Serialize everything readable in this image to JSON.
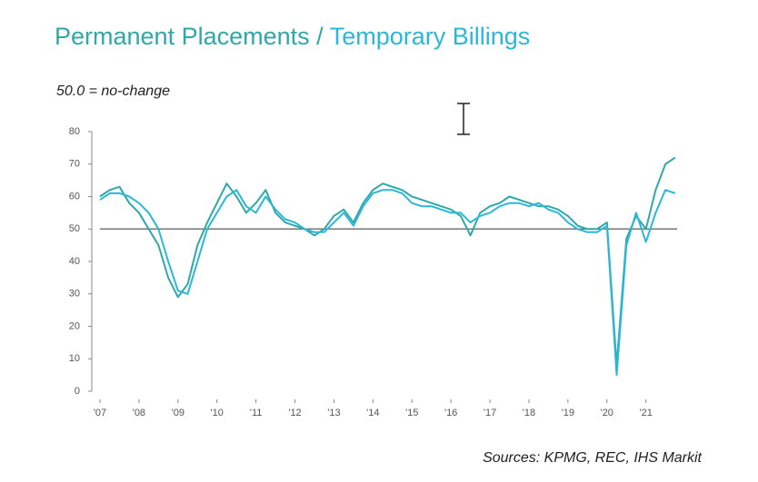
{
  "chart_data": {
    "type": "line",
    "title_separator": "/",
    "subtitle": "50.0 = no-change",
    "source": "Sources: KPMG, REC, IHS Markit",
    "x": [
      2007,
      2007.25,
      2007.5,
      2007.75,
      2008,
      2008.25,
      2008.5,
      2008.75,
      2009,
      2009.25,
      2009.5,
      2009.75,
      2010,
      2010.25,
      2010.5,
      2010.75,
      2011,
      2011.25,
      2011.5,
      2011.75,
      2012,
      2012.25,
      2012.5,
      2012.75,
      2013,
      2013.25,
      2013.5,
      2013.75,
      2014,
      2014.25,
      2014.5,
      2014.75,
      2015,
      2015.25,
      2015.5,
      2015.75,
      2016,
      2016.25,
      2016.5,
      2016.75,
      2017,
      2017.25,
      2017.5,
      2017.75,
      2018,
      2018.25,
      2018.5,
      2018.75,
      2019,
      2019.25,
      2019.5,
      2019.75,
      2020,
      2020.25,
      2020.5,
      2020.75,
      2021,
      2021.25,
      2021.5,
      2021.75
    ],
    "series": [
      {
        "name": "Permanent Placements",
        "color": "#2fa8a8",
        "values": [
          60,
          62,
          63,
          58,
          55,
          50,
          45,
          35,
          29,
          33,
          45,
          52,
          58,
          64,
          60,
          55,
          58,
          62,
          55,
          52,
          51,
          50,
          48,
          50,
          54,
          56,
          52,
          58,
          62,
          64,
          63,
          62,
          60,
          59,
          58,
          57,
          56,
          54,
          48,
          55,
          57,
          58,
          60,
          59,
          58,
          57,
          57,
          56,
          54,
          51,
          50,
          50,
          52,
          8,
          47,
          54,
          50,
          62,
          70,
          72
        ]
      },
      {
        "name": "Temporary Billings",
        "color": "#2bb8d8",
        "values": [
          59,
          61,
          61,
          60,
          58,
          55,
          50,
          40,
          31,
          30,
          40,
          50,
          55,
          60,
          62,
          57,
          55,
          60,
          56,
          53,
          52,
          50,
          49,
          49,
          52,
          55,
          51,
          57,
          61,
          62,
          62,
          61,
          58,
          57,
          57,
          56,
          55,
          55,
          52,
          54,
          55,
          57,
          58,
          58,
          57,
          58,
          56,
          55,
          52,
          50,
          49,
          49,
          51,
          5,
          45,
          55,
          46,
          55,
          62,
          61
        ]
      }
    ],
    "reference_line": 50,
    "xlim": [
      2007,
      2021.8
    ],
    "xticks": [
      {
        "value": 2007,
        "label": "'07"
      },
      {
        "value": 2008,
        "label": "'08"
      },
      {
        "value": 2009,
        "label": "'09"
      },
      {
        "value": 2010,
        "label": "'10"
      },
      {
        "value": 2011,
        "label": "'11"
      },
      {
        "value": 2012,
        "label": "'12"
      },
      {
        "value": 2013,
        "label": "'13"
      },
      {
        "value": 2014,
        "label": "'14"
      },
      {
        "value": 2015,
        "label": "'15"
      },
      {
        "value": 2016,
        "label": "'16"
      },
      {
        "value": 2017,
        "label": "'17"
      },
      {
        "value": 2018,
        "label": "'18"
      },
      {
        "value": 2019,
        "label": "'19"
      },
      {
        "value": 2020,
        "label": "'20"
      },
      {
        "value": 2021,
        "label": "'21"
      }
    ],
    "ylim": [
      0,
      80
    ],
    "yticks": [
      0,
      10,
      20,
      30,
      40,
      50,
      60,
      70,
      80
    ]
  }
}
